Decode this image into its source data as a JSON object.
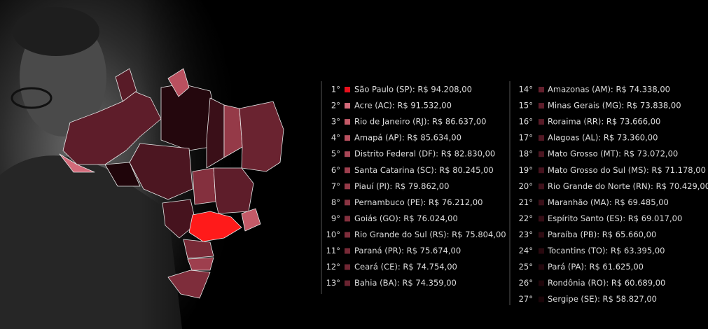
{
  "rankings": {
    "columns": [
      [
        {
          "rank": "1°",
          "label": "São Paulo (SP): R$ 94.208,00",
          "color": "#e8101c"
        },
        {
          "rank": "2°",
          "label": "Acre (AC): R$ 91.532,00",
          "color": "#d36a7a"
        },
        {
          "rank": "3°",
          "label": "Rio de Janeiro (RJ): R$ 86.637,00",
          "color": "#c45a68"
        },
        {
          "rank": "4°",
          "label": "Amapá (AP): R$ 85.634,00",
          "color": "#b9505f"
        },
        {
          "rank": "5°",
          "label": "Distrito Federal (DF): R$ 82.830,00",
          "color": "#a84656"
        },
        {
          "rank": "6°",
          "label": "Santa Catarina (SC): R$ 80.245,00",
          "color": "#9e3f4e"
        },
        {
          "rank": "7°",
          "label": "Piauí (PI): R$ 79.862,00",
          "color": "#953a48"
        },
        {
          "rank": "8°",
          "label": "Pernambuco (PE): R$ 76.212,00",
          "color": "#8a3442"
        },
        {
          "rank": "9°",
          "label": "Goiás (GO): R$ 76.024,00",
          "color": "#84303e"
        },
        {
          "rank": "10°",
          "label": "Rio Grande do Sul (RS): R$ 75.804,00",
          "color": "#7e2d3b"
        },
        {
          "rank": "11°",
          "label": "Paraná (PR): R$ 75.674,00",
          "color": "#782a37"
        },
        {
          "rank": "12°",
          "label": "Ceará (CE): R$ 74.754,00",
          "color": "#702633"
        },
        {
          "rank": "13°",
          "label": "Bahia (BA): R$ 74.359,00",
          "color": "#6a2330"
        }
      ],
      [
        {
          "rank": "14°",
          "label": "Amazonas (AM): R$ 74.338,00",
          "color": "#64202d"
        },
        {
          "rank": "15°",
          "label": "Minas Gerais (MG): R$ 73.838,00",
          "color": "#5e1d2a"
        },
        {
          "rank": "16°",
          "label": "Roraima (RR): R$ 73.666,00",
          "color": "#581b27"
        },
        {
          "rank": "17°",
          "label": "Alagoas (AL): R$ 73.360,00",
          "color": "#521824"
        },
        {
          "rank": "18°",
          "label": "Mato Grosso (MT): R$ 73.072,00",
          "color": "#4c1621"
        },
        {
          "rank": "19°",
          "label": "Mato Grosso do Sul (MS): R$ 71.178,00",
          "color": "#46131e"
        },
        {
          "rank": "20°",
          "label": "Rio Grande do Norte (RN): R$ 70.429,00",
          "color": "#40111b"
        },
        {
          "rank": "21°",
          "label": "Maranhão (MA): R$ 69.485,00",
          "color": "#3a0f18"
        },
        {
          "rank": "22°",
          "label": "Espírito Santo (ES): R$ 69.017,00",
          "color": "#350d15"
        },
        {
          "rank": "23°",
          "label": "Paraíba (PB): R$ 65.660,00",
          "color": "#2f0b12"
        },
        {
          "rank": "24°",
          "label": "Tocantins (TO): R$ 63.395,00",
          "color": "#29090f"
        },
        {
          "rank": "25°",
          "label": "Pará (PA): R$ 61.625,00",
          "color": "#24070d"
        },
        {
          "rank": "26°",
          "label": "Rondônia (RO): R$ 60.689,00",
          "color": "#1f050a"
        },
        {
          "rank": "27°",
          "label": "Sergipe (SE): R$ 58.827,00",
          "color": "#1a0408"
        }
      ]
    ]
  }
}
